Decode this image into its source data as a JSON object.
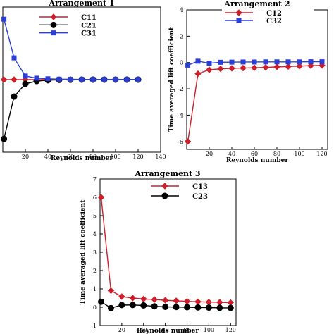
{
  "chart_data": [
    {
      "type": "line",
      "title": "Arrangement 1",
      "xlabel": "Reynolds number",
      "ylabel": "",
      "xlim": [
        0,
        140
      ],
      "ylim": [
        -6,
        6
      ],
      "xticks": [
        20,
        40,
        60,
        80,
        100,
        120,
        140
      ],
      "xtick_labels": [
        "20",
        "40",
        "60",
        "80",
        "100",
        "120",
        "140"
      ],
      "yticks": [],
      "ytick_labels": [],
      "grid": false,
      "legend_position": "top-center",
      "series": [
        {
          "name": "C11",
          "color": "#cc1f2a",
          "marker": "diamond",
          "x": [
            1,
            10,
            20,
            30,
            40,
            50,
            60,
            70,
            80,
            90,
            100,
            110,
            120
          ],
          "y": [
            0,
            0,
            0,
            0,
            0,
            0,
            0,
            0,
            0,
            0,
            0,
            0,
            0
          ]
        },
        {
          "name": "C21",
          "color": "#000000",
          "marker": "circle",
          "x": [
            1,
            10,
            20,
            30,
            40,
            50,
            60,
            70,
            80,
            90,
            100,
            110,
            120
          ],
          "y": [
            -4.9,
            -1.4,
            -0.35,
            -0.12,
            -0.05,
            -0.02,
            -0.01,
            0,
            0,
            0,
            0,
            0,
            0
          ]
        },
        {
          "name": "C31",
          "color": "#2b3fd6",
          "marker": "square",
          "x": [
            1,
            10,
            20,
            30,
            40,
            50,
            60,
            70,
            80,
            90,
            100,
            110,
            120
          ],
          "y": [
            5.0,
            1.8,
            0.3,
            0.12,
            0.07,
            0.04,
            0.03,
            0.02,
            0.02,
            0.02,
            0.02,
            0.02,
            0.02
          ]
        }
      ]
    },
    {
      "type": "line",
      "title": "Arrangement 2",
      "xlabel": "Reynolds number",
      "ylabel": "Time averaged lift coefficient",
      "xlim": [
        0,
        125
      ],
      "ylim": [
        -6.6,
        4
      ],
      "xticks": [
        20,
        40,
        60,
        80,
        100,
        120
      ],
      "xtick_labels": [
        "20",
        "40",
        "60",
        "80",
        "100",
        "120"
      ],
      "yticks": [
        -6,
        -4,
        -2,
        0,
        2,
        4
      ],
      "ytick_labels": [
        "-6",
        "-4",
        "-2",
        "0",
        "2",
        "4"
      ],
      "grid": false,
      "legend_position": "top-center",
      "series": [
        {
          "name": "C12",
          "color": "#cc1f2a",
          "marker": "diamond",
          "x": [
            1,
            10,
            20,
            30,
            40,
            50,
            60,
            70,
            80,
            90,
            100,
            110,
            120
          ],
          "y": [
            -6.0,
            -0.85,
            -0.55,
            -0.48,
            -0.44,
            -0.42,
            -0.4,
            -0.37,
            -0.33,
            -0.3,
            -0.27,
            -0.24,
            -0.22
          ]
        },
        {
          "name": "C32",
          "color": "#2b3fd6",
          "marker": "square",
          "x": [
            1,
            10,
            20,
            30,
            40,
            50,
            60,
            70,
            80,
            90,
            100,
            110,
            120
          ],
          "y": [
            -0.2,
            0.1,
            -0.05,
            0.02,
            0.03,
            0.04,
            0.04,
            0.05,
            0.05,
            0.05,
            0.05,
            0.06,
            0.06
          ]
        }
      ]
    },
    {
      "type": "line",
      "title": "Arrangement 3",
      "xlabel": "Reynolds number",
      "ylabel": "Time averaged lift coefficient",
      "xlim": [
        0,
        125
      ],
      "ylim": [
        -1,
        7
      ],
      "xticks": [
        20,
        40,
        60,
        80,
        100,
        120
      ],
      "xtick_labels": [
        "20",
        "40",
        "60",
        "80",
        "100",
        "120"
      ],
      "yticks": [
        -1,
        0,
        1,
        2,
        3,
        4,
        5,
        6,
        7
      ],
      "ytick_labels": [
        "-1",
        "0",
        "1",
        "2",
        "3",
        "4",
        "5",
        "6",
        "7"
      ],
      "grid": false,
      "legend_position": "top-center",
      "series": [
        {
          "name": "C13",
          "color": "#cc1f2a",
          "marker": "diamond",
          "x": [
            1,
            10,
            20,
            30,
            40,
            50,
            60,
            70,
            80,
            90,
            100,
            110,
            120
          ],
          "y": [
            6.0,
            0.9,
            0.58,
            0.5,
            0.45,
            0.42,
            0.38,
            0.35,
            0.32,
            0.3,
            0.28,
            0.27,
            0.25
          ]
        },
        {
          "name": "C23",
          "color": "#000000",
          "marker": "circle",
          "x": [
            1,
            10,
            20,
            30,
            40,
            50,
            60,
            70,
            80,
            90,
            100,
            110,
            120
          ],
          "y": [
            0.3,
            -0.05,
            0.12,
            0.12,
            0.1,
            0.05,
            0.02,
            0.01,
            0,
            -0.01,
            -0.02,
            -0.03,
            -0.04
          ]
        }
      ]
    }
  ]
}
